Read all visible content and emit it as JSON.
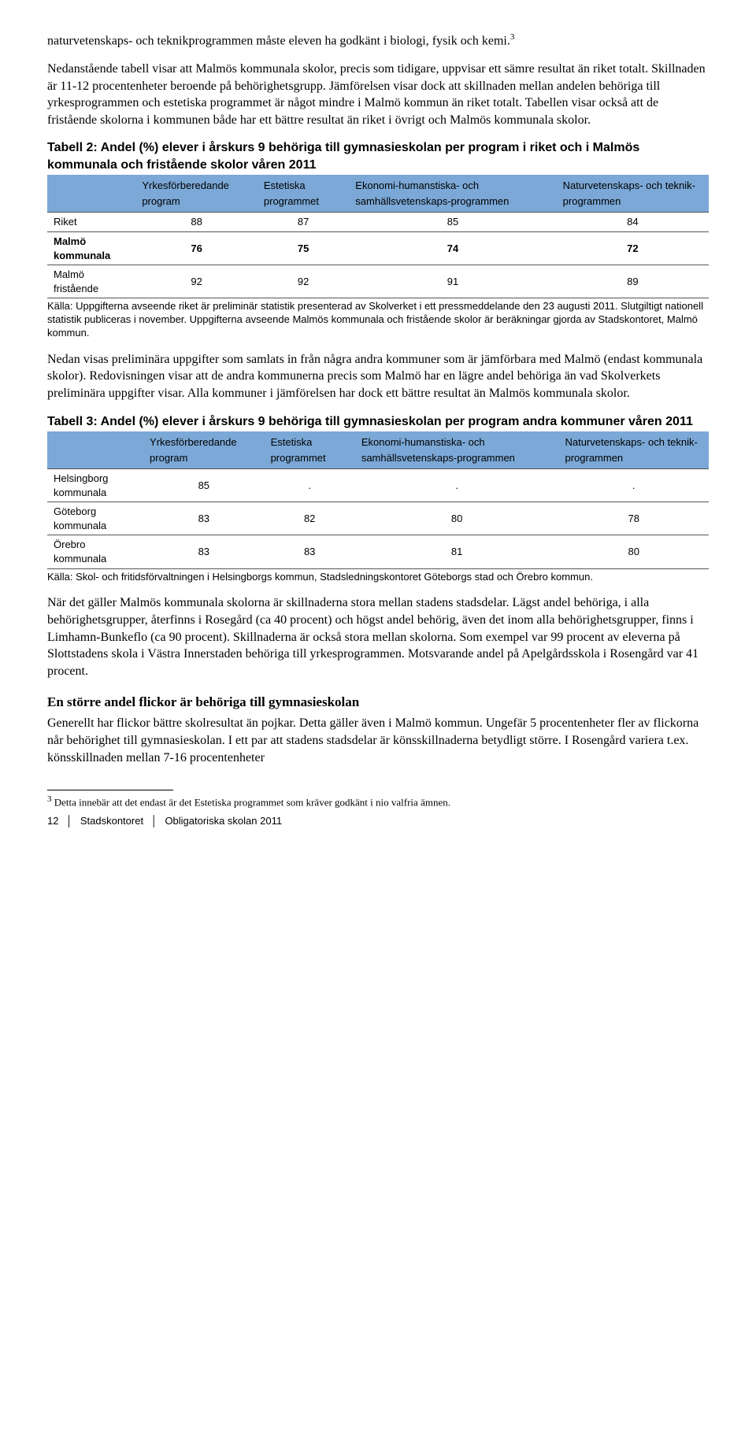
{
  "para1": "naturvetenskaps- och teknikprogrammen måste eleven ha godkänt i biologi, fysik och kemi.",
  "sup1": "3",
  "para2": "Nedanstående tabell visar att Malmös kommunala skolor, precis som tidigare, uppvisar ett sämre resultat än riket totalt. Skillnaden är 11-12 procentenheter beroende på behörighetsgrupp. Jämförelsen visar dock att skillnaden mellan andelen behöriga till yrkesprogrammen och estetiska programmet är något mindre i Malmö kommun än riket totalt. Tabellen visar också att de fristående skolorna i kommunen både har ett bättre resultat än riket i övrigt och Malmös kommunala skolor.",
  "table2": {
    "title": "Tabell 2: Andel (%) elever i årskurs 9 behöriga till gymnasieskolan per program i riket och i Malmös kommunala och fristående skolor våren 2011",
    "header_bg": "#7ba8d6",
    "columns": [
      "",
      "Yrkesförberedande program",
      "Estetiska programmet",
      "Ekonomi-humanstiska- och samhällsvetenskaps-programmen",
      "Naturvetenskaps- och teknik-programmen"
    ],
    "rows": [
      {
        "label": "Riket",
        "vals": [
          "88",
          "87",
          "85",
          "84"
        ],
        "bold": false
      },
      {
        "label": "Malmö kommunala",
        "vals": [
          "76",
          "75",
          "74",
          "72"
        ],
        "bold": true
      },
      {
        "label": "Malmö fristående",
        "vals": [
          "92",
          "92",
          "91",
          "89"
        ],
        "bold": false
      }
    ],
    "source": "Källa: Uppgifterna avseende riket är preliminär statistik presenterad av Skolverket i ett pressmeddelande den 23 augusti 2011. Slutgiltigt nationell statistik publiceras i november. Uppgifterna avseende Malmös kommunala och fristående skolor är beräkningar gjorda av Stadskontoret, Malmö kommun."
  },
  "para3": "Nedan visas preliminära uppgifter som samlats in från några andra kommuner som är jämförbara med Malmö (endast kommunala skolor). Redovisningen visar att de andra kommunerna precis som Malmö har en lägre andel behöriga än vad Skolverkets preliminära uppgifter visar. Alla kommuner i jämförelsen har dock ett bättre resultat än Malmös kommunala skolor.",
  "table3": {
    "title": "Tabell 3: Andel (%) elever i årskurs 9 behöriga till gymnasieskolan per program andra kommuner våren 2011",
    "header_bg": "#7ba8d6",
    "columns": [
      "",
      "Yrkesförberedande program",
      "Estetiska programmet",
      "Ekonomi-humanstiska- och samhällsvetenskaps-programmen",
      "Naturvetenskaps- och teknik-programmen"
    ],
    "rows": [
      {
        "label": "Helsingborg kommunala",
        "vals": [
          "85",
          ".",
          ".",
          "."
        ],
        "bold": false
      },
      {
        "label": "Göteborg kommunala",
        "vals": [
          "83",
          "82",
          "80",
          "78"
        ],
        "bold": false
      },
      {
        "label": "Örebro kommunala",
        "vals": [
          "83",
          "83",
          "81",
          "80"
        ],
        "bold": false
      }
    ],
    "source": "Källa: Skol- och fritidsförvaltningen i Helsingborgs kommun, Stadsledningskontoret Göteborgs stad och Örebro kommun."
  },
  "para4": "När det gäller Malmös kommunala skolorna är skillnaderna stora mellan stadens stadsdelar. Lägst andel behöriga, i alla behörighetsgrupper, återfinns i Rosegård (ca 40 procent) och högst andel behörig, även det inom alla behörighetsgrupper, finns i Limhamn-Bunkeflo (ca 90 procent). Skillnaderna är också stora mellan skolorna. Som exempel var 99 procent av eleverna på Slottstadens skola i Västra Innerstaden behöriga till yrkesprogrammen. Motsvarande andel på Apelgårdsskola i Rosengård var 41 procent.",
  "subhead": "En större andel flickor är behöriga till gymnasieskolan",
  "para5": "Generellt har flickor bättre skolresultat än pojkar. Detta gäller även i Malmö kommun. Ungefär 5 procentenheter fler av flickorna når behörighet till gymnasieskolan. I ett par att stadens stadsdelar är könsskillnaderna betydligt större. I Rosengård variera t.ex. könsskillnaden mellan 7-16 procentenheter",
  "footnote": {
    "num": "3",
    "text": " Detta innebär att det endast är det Estetiska programmet som kräver godkänt i nio valfria ämnen."
  },
  "footer": {
    "page": "12",
    "org": "Stadskontoret",
    "doc": "Obligatoriska skolan 2011"
  }
}
